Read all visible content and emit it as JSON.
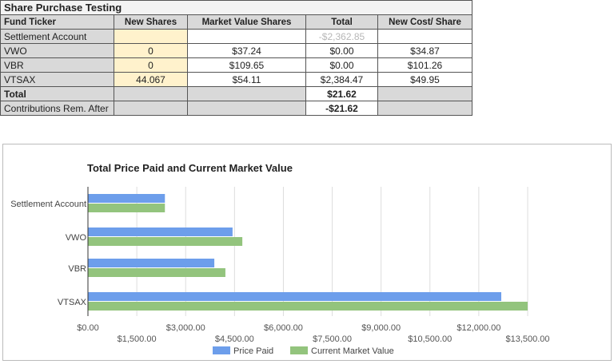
{
  "table": {
    "title": "Share Purchase Testing",
    "headers": [
      "Fund Ticker",
      "New Shares",
      "Market Value Shares",
      "Total",
      "New Cost/ Share"
    ],
    "rows": [
      {
        "ticker": "Settlement Account",
        "new_shares": "",
        "market_value": "",
        "total": "-$2,362.85",
        "new_cost": ""
      },
      {
        "ticker": "VWO",
        "new_shares": "0",
        "market_value": "$37.24",
        "total": "$0.00",
        "new_cost": "$34.87"
      },
      {
        "ticker": "VBR",
        "new_shares": "0",
        "market_value": "$109.65",
        "total": "$0.00",
        "new_cost": "$101.26"
      },
      {
        "ticker": "VTSAX",
        "new_shares": "44.067",
        "market_value": "$54.11",
        "total": "$2,384.47",
        "new_cost": "$49.95"
      }
    ],
    "total_label": "Total",
    "total_value": "$21.62",
    "contrib_label": "Contributions Rem. After",
    "contrib_value": "-$21.62"
  },
  "chart_data": {
    "type": "bar",
    "orientation": "horizontal",
    "title": "Total Price Paid and Current Market Value",
    "categories": [
      "Settlement Account",
      "VWO",
      "VBR",
      "VTSAX"
    ],
    "series": [
      {
        "name": "Price Paid",
        "color": "#6d9eeb",
        "values": [
          2362.85,
          4440,
          3880,
          12690
        ]
      },
      {
        "name": "Current Market Value",
        "color": "#93c47d",
        "values": [
          2362.85,
          4740,
          4220,
          13500
        ]
      }
    ],
    "xlim": [
      0,
      13500
    ],
    "ticks": [
      "$0.00",
      "$1,500.00",
      "$3,000.00",
      "$4,500.00",
      "$6,000.00",
      "$7,500.00",
      "$9,000.00",
      "$10,500.00",
      "$12,000.00",
      "$13,500.00"
    ],
    "grid": true,
    "legend": "bottom"
  }
}
